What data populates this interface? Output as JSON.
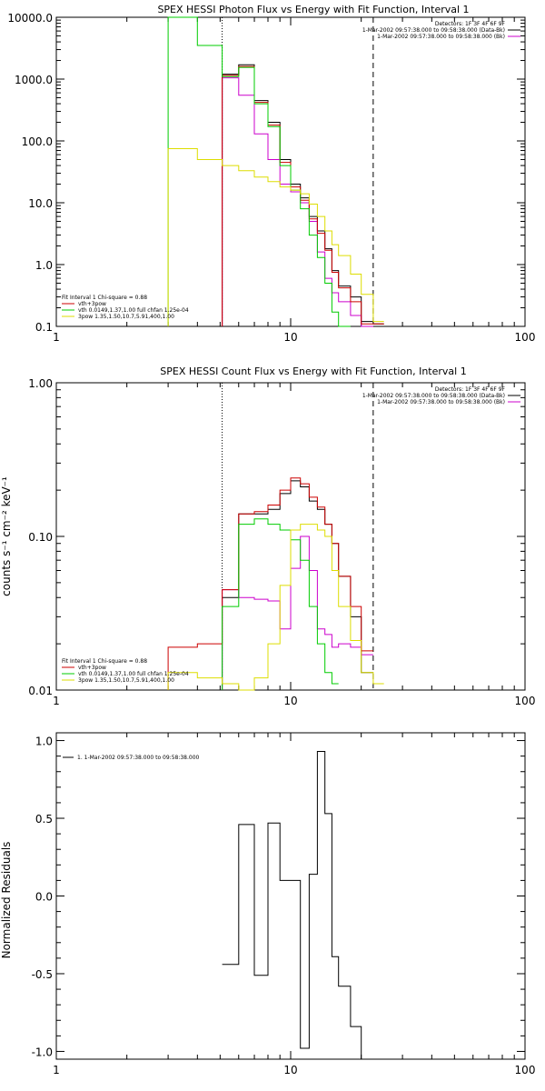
{
  "chart_data": [
    {
      "type": "line",
      "title": "SPEX HESSI Photon Flux vs Energy with Fit Function, Interval 1",
      "xlabel": "",
      "ylabel": "",
      "xscale": "log",
      "yscale": "log",
      "xlim": [
        1,
        100
      ],
      "ylim": [
        0.1,
        10000
      ],
      "xtick_labels": [
        "1",
        "10",
        "100"
      ],
      "ytick_labels": [
        "0.1",
        "1.0",
        "10.0",
        "100.0",
        "1000.0",
        "10000.0"
      ],
      "vlines": [
        {
          "x": 5.1,
          "style": "dotted"
        },
        {
          "x": 22.5,
          "style": "dashed"
        }
      ],
      "legend_top_right": {
        "placement": "top-right",
        "lines": [
          "Detectors: 1F 3F 4F 6F 9F",
          "1-Mar-2002 09:57:38.000 to 09:58:38.000 (Data-Bk)",
          "1-Mar-2002 09:57:38.000 to 09:58:38.000 (Bk)"
        ],
        "line_colors": [
          "#000000",
          "#cc00cc"
        ]
      },
      "legend_bottom_left": {
        "placement": "bottom-left",
        "header": "Fit Interval 1    Chi-square = 0.88",
        "lines": [
          "vth+3pow",
          "vth 0.0149,1.37,1.00  full chfan 1.25e-04",
          "3pow 1.35,1.50,10.7,5.91,400,1.00"
        ],
        "line_colors": [
          "#cc0000",
          "#00cc00",
          "#dddd00"
        ]
      },
      "x_edges": [
        3,
        4,
        5.1,
        6,
        7,
        8,
        9,
        10,
        11,
        12,
        13,
        14,
        15,
        16,
        18,
        20,
        22.5,
        25
      ],
      "series": [
        {
          "name": "Data-Bk",
          "color": "#000000",
          "values": [
            null,
            null,
            1200,
            1700,
            450,
            200,
            50,
            20,
            12,
            6,
            3.5,
            1.8,
            0.8,
            0.45,
            0.3,
            0.12,
            0.11
          ]
        },
        {
          "name": "Bk",
          "color": "#cc00cc",
          "values": [
            null,
            null,
            1050,
            550,
            130,
            50,
            20,
            15,
            10,
            5,
            1.6,
            0.6,
            0.35,
            0.25,
            0.15,
            0.1,
            null
          ]
        },
        {
          "name": "vth+3pow",
          "color": "#cc0000",
          "values": [
            null,
            null,
            1150,
            1600,
            420,
            180,
            45,
            18,
            11,
            5.5,
            3.2,
            1.7,
            0.75,
            0.42,
            0.25,
            0.11,
            0.11
          ]
        },
        {
          "name": "vth",
          "color": "#00cc00",
          "values": [
            10000,
            3500,
            1100,
            1550,
            400,
            170,
            40,
            16,
            8,
            3,
            1.3,
            0.5,
            0.17,
            0.1,
            null,
            null,
            null
          ]
        },
        {
          "name": "3pow",
          "color": "#dddd00",
          "values": [
            75,
            50,
            40,
            33,
            26,
            22,
            18,
            16,
            14,
            9.5,
            6,
            3.5,
            2.1,
            1.4,
            0.7,
            0.33,
            0.12
          ]
        }
      ]
    },
    {
      "type": "line",
      "title": "SPEX HESSI Count Flux vs Energy with Fit Function, Interval 1",
      "xlabel": "",
      "ylabel": "counts s⁻¹ cm⁻² keV⁻¹",
      "xscale": "log",
      "yscale": "log",
      "xlim": [
        1,
        100
      ],
      "ylim": [
        0.01,
        1
      ],
      "xtick_labels": [
        "1",
        "10",
        "100"
      ],
      "ytick_labels": [
        "0.01",
        "0.10",
        "1.00"
      ],
      "vlines": [
        {
          "x": 5.1,
          "style": "dotted"
        },
        {
          "x": 22.5,
          "style": "dashed"
        }
      ],
      "legend_top_right": {
        "placement": "top-right",
        "lines": [
          "Detectors: 1F 3F 4F 6F 9F",
          "1-Mar-2002 09:57:38.000 to 09:58:38.000 (Data-Bk)",
          "1-Mar-2002 09:57:38.000 to 09:58:38.000 (Bk)"
        ],
        "line_colors": [
          "#000000",
          "#cc00cc"
        ]
      },
      "legend_bottom_left": {
        "placement": "bottom-left",
        "header": "Fit Interval 1    Chi-square = 0.88",
        "lines": [
          "vth+3pow",
          "vth 0.0149,1.37,1.00  full chfan 1.25e-04",
          "3pow 1.35,1.50,10.7,5.91,400,1.00"
        ],
        "line_colors": [
          "#cc0000",
          "#00cc00",
          "#dddd00"
        ]
      },
      "x_edges": [
        3,
        4,
        5.1,
        6,
        7,
        8,
        9,
        10,
        11,
        12,
        13,
        14,
        15,
        16,
        18,
        20,
        22.5,
        25
      ],
      "series": [
        {
          "name": "Data-Bk",
          "color": "#000000",
          "values": [
            null,
            null,
            0.04,
            0.14,
            0.14,
            0.15,
            0.19,
            0.23,
            0.21,
            0.17,
            0.15,
            0.12,
            0.09,
            0.055,
            0.03,
            0.013,
            null
          ]
        },
        {
          "name": "Bk",
          "color": "#cc00cc",
          "values": [
            null,
            null,
            0.045,
            0.04,
            0.039,
            0.038,
            0.025,
            0.062,
            0.1,
            0.06,
            0.025,
            0.023,
            0.019,
            0.02,
            0.019,
            0.017,
            null
          ]
        },
        {
          "name": "vth+3pow",
          "color": "#cc0000",
          "values": [
            0.019,
            0.02,
            0.045,
            0.14,
            0.145,
            0.16,
            0.2,
            0.24,
            0.22,
            0.18,
            0.155,
            0.12,
            0.09,
            0.055,
            0.035,
            0.018,
            null
          ]
        },
        {
          "name": "vth",
          "color": "#00cc00",
          "values": [
            null,
            null,
            0.035,
            0.12,
            0.13,
            0.12,
            0.11,
            0.095,
            0.07,
            0.035,
            0.02,
            0.013,
            0.011,
            null,
            null,
            null,
            null
          ]
        },
        {
          "name": "3pow",
          "color": "#dddd00",
          "values": [
            0.013,
            0.012,
            0.011,
            0.01,
            0.012,
            0.02,
            0.048,
            0.11,
            0.12,
            0.12,
            0.11,
            0.1,
            0.06,
            0.035,
            0.021,
            0.013,
            0.011
          ]
        }
      ]
    },
    {
      "type": "line",
      "title": "",
      "xlabel": "",
      "ylabel": "Normalized Residuals",
      "xscale": "log",
      "yscale": "linear",
      "xlim": [
        1,
        100
      ],
      "ylim": [
        -1.05,
        1.05
      ],
      "xtick_labels": [
        "1",
        "10",
        "100"
      ],
      "ytick_labels": [
        "-1.0",
        "-0.5",
        "0.0",
        "0.5",
        "1.0"
      ],
      "yticks": [
        -1.0,
        -0.5,
        0.0,
        0.5,
        1.0
      ],
      "legend": {
        "placement": "top-left",
        "text": "1.  1-Mar-2002 09:57:38.000 to 09:58:38.000"
      },
      "x_edges": [
        5.1,
        6,
        7,
        8,
        9,
        10,
        11,
        12,
        13,
        14,
        15,
        16,
        18,
        20,
        22.5
      ],
      "series": [
        {
          "name": "1.  1-Mar-2002 09:57:38.000 to 09:58:38.000",
          "color": "#000000",
          "values": [
            -0.44,
            0.46,
            -0.51,
            0.47,
            0.1,
            0.1,
            -0.98,
            0.14,
            0.93,
            0.53,
            -0.39,
            -0.58,
            -0.84,
            -1.05
          ]
        }
      ]
    }
  ]
}
